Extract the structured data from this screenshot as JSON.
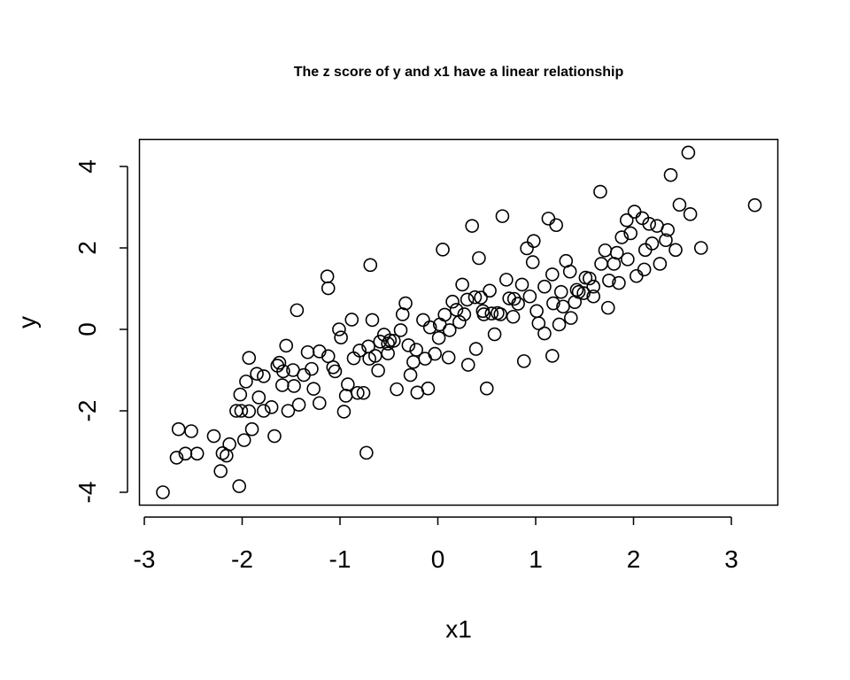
{
  "chart_data": {
    "type": "scatter",
    "title": "The z score of y and x1 have a linear relationship",
    "xlabel": "x1",
    "ylabel": "y",
    "xlim": [
      -3,
      3.5
    ],
    "ylim": [
      -4.2,
      4.6
    ],
    "xticks": [
      -3,
      -2,
      -1,
      0,
      1,
      2,
      3
    ],
    "yticks": [
      -4,
      -2,
      0,
      2,
      4
    ],
    "grid": false,
    "marker": "open-circle",
    "marker_color": "#000000",
    "series": [
      {
        "x": [
          -2.81,
          -2.67,
          -2.65,
          -2.58,
          -2.52,
          -2.46,
          -2.29,
          -2.22,
          -2.2,
          -2.16,
          -2.13,
          -2.06,
          -2.03,
          -2.02,
          -1.98,
          -1.96,
          -1.93,
          -1.9,
          -1.83,
          -1.78,
          -1.7,
          -1.67,
          -1.59,
          -1.53,
          -1.48,
          -1.42,
          -1.37,
          -1.29,
          -1.21,
          -1.12,
          -1.07,
          -0.99,
          -0.92,
          -0.86,
          -0.8,
          -0.71,
          -0.64,
          -0.59,
          -0.51,
          -0.45,
          -0.38,
          -0.3,
          -0.22,
          -0.15,
          -0.08,
          0.01,
          0.07,
          0.15,
          0.22,
          0.3,
          0.38,
          0.46,
          0.53,
          0.61,
          0.7,
          0.78,
          0.86,
          0.94,
          1.01,
          1.09,
          1.17,
          1.26,
          1.35,
          1.42,
          1.51,
          1.59,
          1.67,
          1.75,
          1.85,
          1.94,
          2.03,
          2.12,
          2.19,
          2.27,
          2.33,
          2.38,
          2.47,
          2.56,
          2.69,
          3.24,
          -1.13,
          -1.44,
          -0.69,
          -0.73,
          0.05,
          0.35,
          0.66,
          1.21,
          1.66,
          2.58,
          -0.7,
          0.5,
          0.25,
          1.17,
          -1.55,
          -0.51,
          -0.1,
          0.88,
          1.36,
          2.35,
          -1.93,
          -1.12,
          -0.36,
          0.42,
          1.13,
          1.93,
          -2.01,
          -1.64,
          -0.82,
          -0.03,
          0.77,
          1.59,
          2.11,
          -1.27,
          -0.42,
          0.39,
          1.09,
          1.8,
          -1.78,
          -0.94,
          -0.21,
          0.58,
          1.44,
          2.43,
          -1.58,
          -0.61,
          0.31,
          1.03,
          1.74,
          -1.33,
          -0.55,
          0.12,
          0.97,
          1.71,
          2.09,
          -1.01,
          -0.25,
          0.47,
          1.28,
          1.97,
          -0.88,
          0.02,
          0.82,
          1.49,
          -1.85,
          -1.47,
          -0.67,
          0.19,
          0.91,
          1.55,
          2.24,
          -1.21,
          -0.33,
          0.55,
          1.24,
          2.01,
          -0.76,
          0.11,
          0.73,
          1.4,
          -1.62,
          -0.49,
          0.27,
          0.98,
          1.83,
          -1.05,
          -0.13,
          0.64,
          1.31,
          2.16,
          -0.96,
          -0.28,
          0.44,
          1.18,
          1.88
        ],
        "y": [
          -4.0,
          -3.15,
          -2.45,
          -3.05,
          -2.5,
          -3.05,
          -2.62,
          -3.48,
          -3.04,
          -3.1,
          -2.82,
          -2.0,
          -3.85,
          -1.6,
          -2.72,
          -1.28,
          -2.01,
          -2.45,
          -1.67,
          -2.0,
          -1.91,
          -2.62,
          -1.37,
          -2.0,
          -1.0,
          -1.85,
          -1.12,
          -0.97,
          -1.81,
          -0.66,
          -0.93,
          -0.2,
          -1.35,
          -0.71,
          -0.52,
          -0.42,
          -0.65,
          -0.3,
          -0.59,
          -0.28,
          -0.02,
          -0.39,
          -0.5,
          0.23,
          0.05,
          -0.21,
          0.36,
          0.68,
          0.18,
          0.73,
          0.79,
          0.45,
          0.95,
          0.4,
          1.22,
          0.75,
          1.1,
          0.81,
          0.45,
          1.05,
          1.35,
          0.92,
          1.42,
          0.97,
          1.27,
          1.05,
          1.61,
          1.2,
          1.14,
          1.72,
          1.31,
          1.95,
          2.11,
          1.61,
          2.19,
          3.79,
          3.06,
          4.34,
          2.0,
          3.05,
          1.3,
          0.47,
          1.58,
          -3.03,
          1.96,
          2.54,
          2.78,
          2.56,
          3.38,
          2.83,
          -0.72,
          -1.45,
          1.1,
          -0.65,
          -0.4,
          -0.35,
          -1.45,
          -0.78,
          0.28,
          2.44,
          -0.7,
          1.01,
          0.37,
          1.75,
          2.72,
          2.68,
          -2.0,
          -0.89,
          -1.56,
          -0.6,
          0.31,
          0.81,
          1.47,
          -1.46,
          -1.47,
          -0.48,
          -0.1,
          1.61,
          -1.15,
          -1.63,
          -1.55,
          -0.12,
          0.92,
          1.95,
          -1.03,
          -1.01,
          -0.87,
          0.15,
          0.53,
          -0.56,
          -0.13,
          -0.02,
          1.65,
          1.94,
          2.73,
          0.0,
          -0.8,
          0.37,
          0.56,
          2.36,
          0.24,
          0.12,
          0.63,
          0.89,
          -1.09,
          -1.39,
          0.23,
          0.48,
          1.99,
          1.25,
          2.54,
          -0.54,
          0.64,
          0.39,
          0.12,
          2.89,
          -1.56,
          -0.69,
          0.76,
          0.67,
          -0.82,
          -0.27,
          0.37,
          2.17,
          1.88,
          -1.03,
          -0.72,
          0.37,
          1.68,
          2.59,
          -2.02,
          -1.12,
          0.78,
          0.64,
          2.26
        ]
      }
    ]
  }
}
